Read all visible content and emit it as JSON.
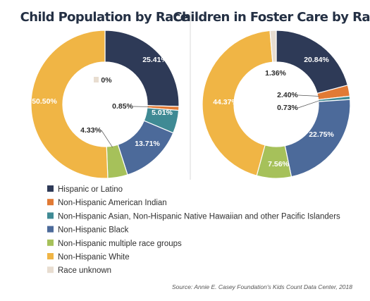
{
  "colors": {
    "hispanic": "#2e3a57",
    "american_indian": "#e17a35",
    "asian_pacific": "#3f8a94",
    "black": "#4c6a9a",
    "multiple": "#a6c15a",
    "white": "#f0b545",
    "unknown": "#e8ddd0"
  },
  "chart_data": [
    {
      "type": "donut",
      "title": "Child Population by Race",
      "slices": [
        {
          "key": "hispanic",
          "label": "25.41%",
          "value": 25.41
        },
        {
          "key": "american_indian",
          "label": "0.85%",
          "value": 0.85
        },
        {
          "key": "asian_pacific",
          "label": "5.01%",
          "value": 5.01
        },
        {
          "key": "black",
          "label": "13.71%",
          "value": 13.71
        },
        {
          "key": "multiple",
          "label": "4.33%",
          "value": 4.33
        },
        {
          "key": "white",
          "label": "50.50%",
          "value": 50.5
        },
        {
          "key": "unknown",
          "label": "0%",
          "value": 0
        }
      ]
    },
    {
      "type": "donut",
      "title": "Children in Foster Care by Race",
      "slices": [
        {
          "key": "hispanic",
          "label": "20.84%",
          "value": 20.84
        },
        {
          "key": "american_indian",
          "label": "2.40%",
          "value": 2.4
        },
        {
          "key": "asian_pacific",
          "label": "0.73%",
          "value": 0.73
        },
        {
          "key": "black",
          "label": "22.75%",
          "value": 22.75
        },
        {
          "key": "multiple",
          "label": "7.56%",
          "value": 7.56
        },
        {
          "key": "white",
          "label": "44.37%",
          "value": 44.37
        },
        {
          "key": "unknown",
          "label": "1.36%",
          "value": 1.36
        }
      ]
    }
  ],
  "legend": [
    {
      "key": "hispanic",
      "label": "Hispanic or Latino"
    },
    {
      "key": "american_indian",
      "label": "Non-Hispanic American Indian"
    },
    {
      "key": "asian_pacific",
      "label": "Non-Hispanic Asian, Non-Hispanic Native Hawaiian and other Pacific Islanders"
    },
    {
      "key": "black",
      "label": "Non-Hispanic Black"
    },
    {
      "key": "multiple",
      "label": "Non-Hispanic multiple race groups"
    },
    {
      "key": "white",
      "label": "Non-Hispanic White"
    },
    {
      "key": "unknown",
      "label": "Race unknown"
    }
  ],
  "source": "Source: Annie E. Casey Foundation's Kids Count Data Center, 2018"
}
